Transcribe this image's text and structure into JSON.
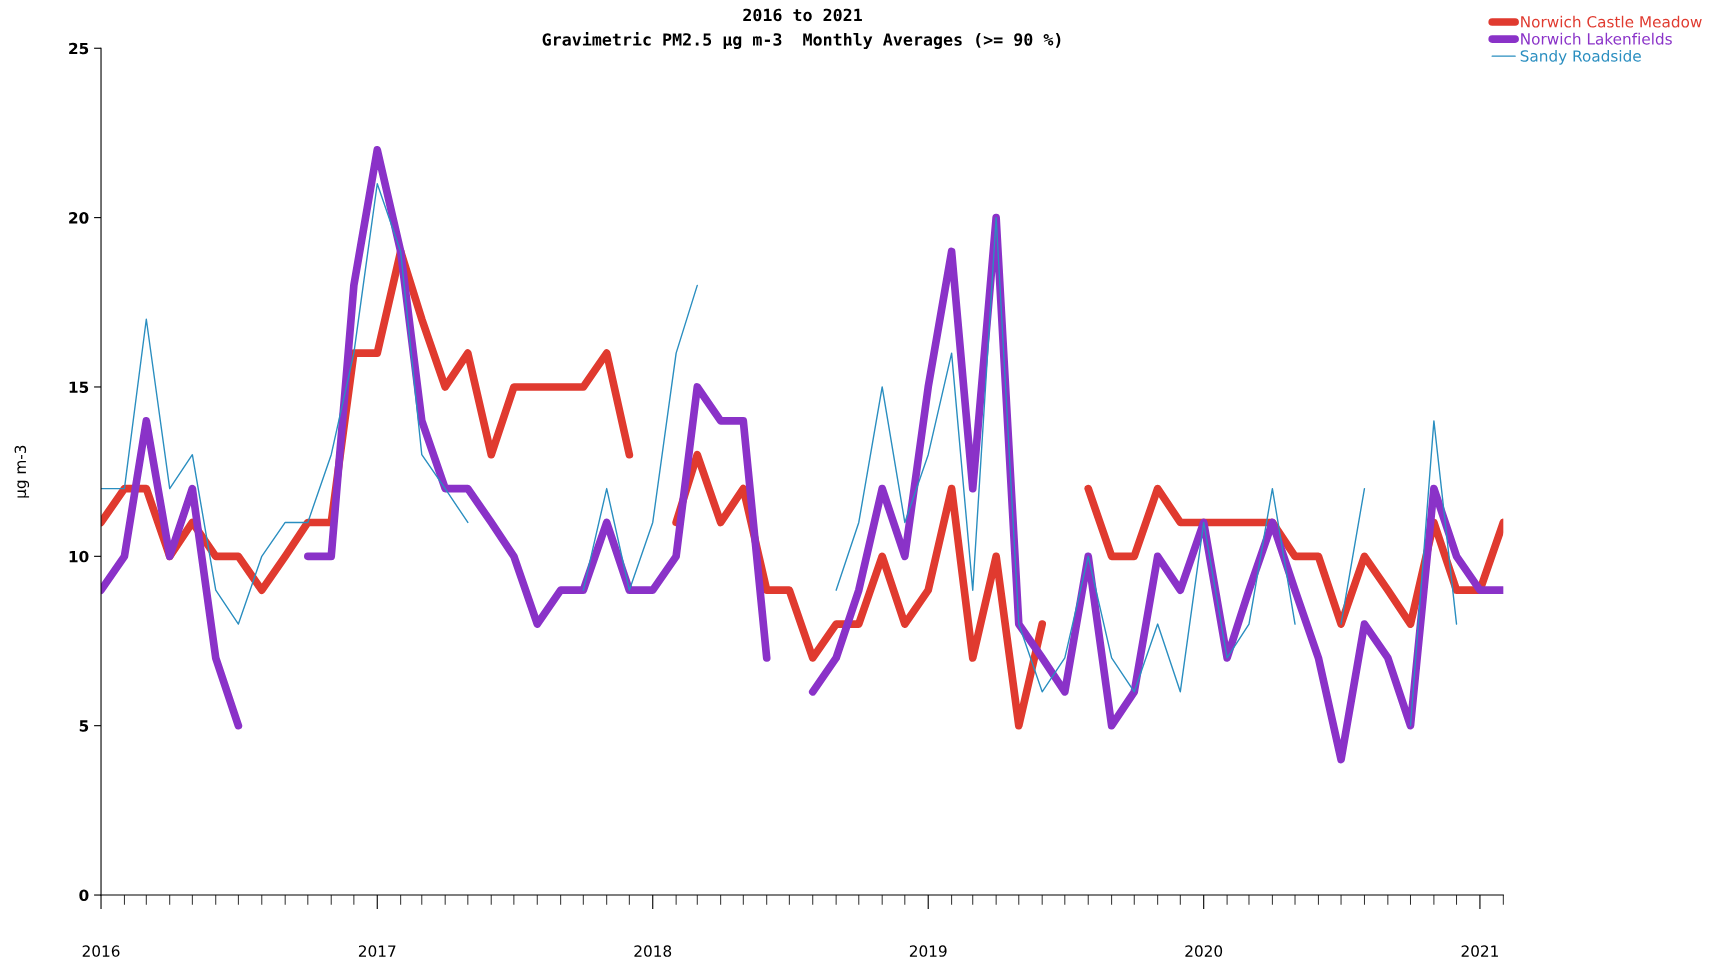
{
  "chart_data": {
    "type": "line",
    "title": "2016 to 2021",
    "subtitle": "Gravimetric PM2.5 µg m-3  Monthly Averages (>= 90 %)",
    "ylabel": "µg m-3",
    "x": [
      "2016-01",
      "2016-02",
      "2016-03",
      "2016-04",
      "2016-05",
      "2016-06",
      "2016-07",
      "2016-08",
      "2016-09",
      "2016-10",
      "2016-11",
      "2016-12",
      "2017-01",
      "2017-02",
      "2017-03",
      "2017-04",
      "2017-05",
      "2017-06",
      "2017-07",
      "2017-08",
      "2017-09",
      "2017-10",
      "2017-11",
      "2017-12",
      "2018-01",
      "2018-02",
      "2018-03",
      "2018-04",
      "2018-05",
      "2018-06",
      "2018-07",
      "2018-08",
      "2018-09",
      "2018-10",
      "2018-11",
      "2018-12",
      "2019-01",
      "2019-02",
      "2019-03",
      "2019-04",
      "2019-05",
      "2019-06",
      "2019-07",
      "2019-08",
      "2019-09",
      "2019-10",
      "2019-11",
      "2019-12",
      "2020-01",
      "2020-02",
      "2020-03",
      "2020-04",
      "2020-05",
      "2020-06",
      "2020-07",
      "2020-08",
      "2020-09",
      "2020-10",
      "2020-11",
      "2020-12",
      "2021-01",
      "2021-02"
    ],
    "series": [
      {
        "name": "Norwich Castle Meadow",
        "color": "#e03a2f",
        "values": [
          11,
          12,
          12,
          10,
          11,
          10,
          10,
          9,
          10,
          11,
          11,
          16,
          16,
          19,
          17,
          15,
          16,
          13,
          15,
          15,
          15,
          15,
          16,
          13,
          null,
          11,
          13,
          11,
          12,
          9,
          9,
          7,
          8,
          8,
          10,
          8,
          9,
          12,
          7,
          10,
          5,
          8,
          null,
          12,
          10,
          10,
          12,
          11,
          11,
          11,
          11,
          11,
          10,
          10,
          8,
          10,
          9,
          8,
          11,
          9,
          9,
          11
        ]
      },
      {
        "name": "Norwich Lakenfields",
        "color": "#8a32c8",
        "values": [
          9,
          10,
          14,
          10,
          12,
          7,
          5,
          null,
          null,
          10,
          10,
          18,
          22,
          19,
          14,
          12,
          12,
          11,
          10,
          8,
          9,
          9,
          11,
          9,
          9,
          10,
          15,
          14,
          14,
          7,
          null,
          6,
          7,
          9,
          12,
          10,
          15,
          19,
          12,
          20,
          8,
          7,
          6,
          10,
          5,
          6,
          10,
          9,
          11,
          7,
          9,
          11,
          9,
          7,
          4,
          8,
          7,
          5,
          12,
          10,
          9,
          9
        ]
      },
      {
        "name": "Sandy Roadside",
        "color": "#2a8ec0",
        "values": [
          12,
          12,
          17,
          12,
          13,
          9,
          8,
          10,
          11,
          11,
          13,
          16,
          21,
          19,
          13,
          12,
          11,
          null,
          null,
          null,
          null,
          9,
          12,
          9,
          11,
          16,
          18,
          null,
          null,
          null,
          null,
          null,
          9,
          11,
          15,
          11,
          13,
          16,
          9,
          20,
          8,
          6,
          7,
          10,
          7,
          6,
          8,
          6,
          11,
          7,
          8,
          12,
          8,
          null,
          8,
          12,
          null,
          5,
          14,
          8,
          null,
          null
        ]
      }
    ],
    "xlim": [
      "2016-01",
      "2021-02"
    ],
    "xticks": [
      "2016",
      "2017",
      "2018",
      "2019",
      "2020",
      "2021"
    ],
    "ylim": [
      0,
      25
    ],
    "yticks": [
      0,
      5,
      10,
      15,
      20,
      25
    ],
    "grid": false,
    "legend": "top right",
    "marker": "none",
    "line_style": "solid"
  }
}
